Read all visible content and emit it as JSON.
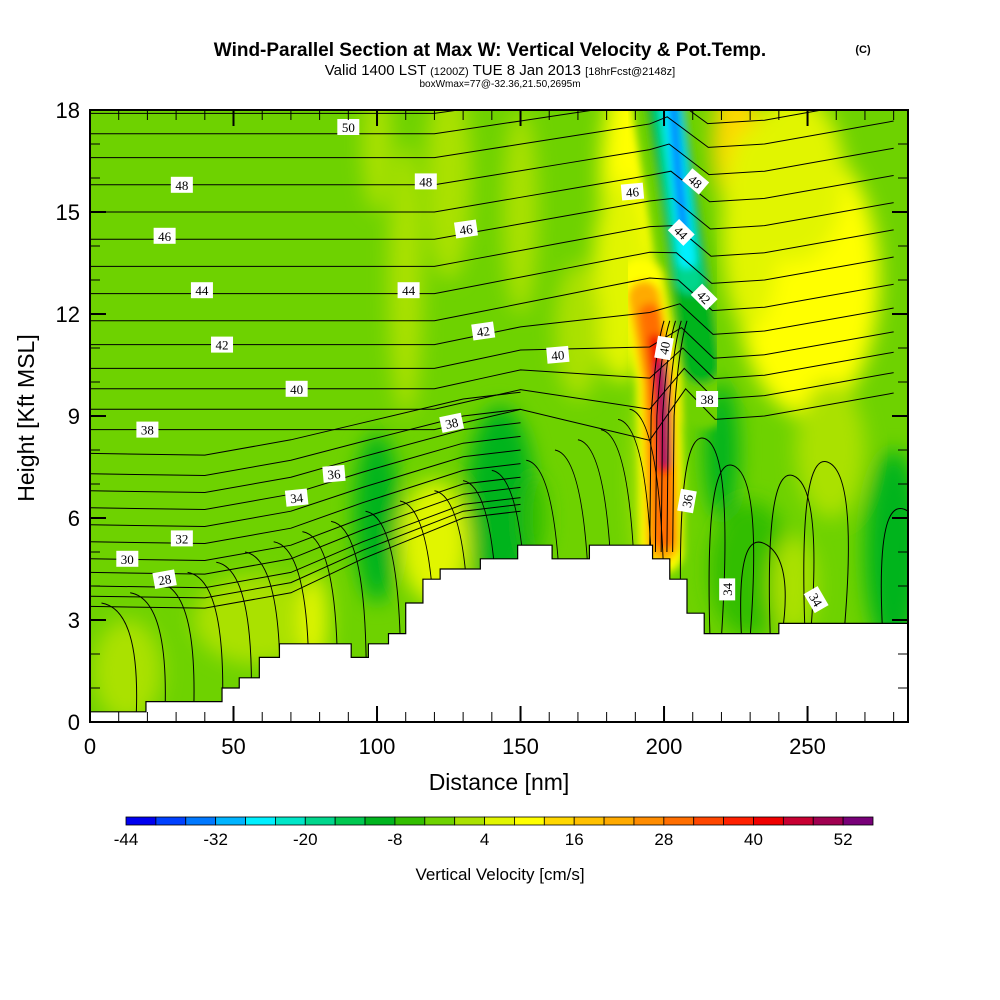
{
  "header": {
    "title": "Wind-Parallel Section at Max W: Vertical Velocity & Pot.Temp.",
    "copyright": "(C)",
    "valid_prefix": "Valid 1400 LST",
    "valid_utc": "(1200Z)",
    "valid_date": "TUE 8 Jan 2013",
    "forecast": "[18hrFcst@2148z]",
    "boxwmax": "boxWmax=77@-32.36,21.50,2695m"
  },
  "chart_data": {
    "type": "heatmap",
    "title": "Wind-Parallel Section at Max W: Vertical Velocity & Pot.Temp.",
    "xlabel": "Distance [nm]",
    "ylabel": "Height [Kft MSL]",
    "xlim": [
      0,
      285
    ],
    "ylim": [
      0,
      18
    ],
    "xticks": [
      0,
      50,
      100,
      150,
      200,
      250
    ],
    "yticks": [
      0,
      3,
      6,
      9,
      12,
      15,
      18
    ],
    "colorbar": {
      "label": "Vertical Velocity [cm/s]",
      "placement": "bottom",
      "levels": [
        -44,
        -40,
        -36,
        -32,
        -28,
        -24,
        -20,
        -16,
        -12,
        -8,
        -4,
        0,
        4,
        8,
        12,
        16,
        20,
        24,
        28,
        32,
        36,
        40,
        44,
        48,
        52,
        56
      ],
      "tick_labels": [
        "-44",
        "-32",
        "-20",
        "-8",
        "4",
        "16",
        "28",
        "40",
        "52"
      ],
      "tick_values": [
        -44,
        -32,
        -20,
        -8,
        4,
        16,
        28,
        40,
        52
      ],
      "colors": [
        "#0000f0",
        "#0040ff",
        "#0078ff",
        "#00b4ff",
        "#00f0ff",
        "#00e6c8",
        "#00d68c",
        "#00c850",
        "#00b41e",
        "#32be00",
        "#6ed200",
        "#aae100",
        "#e1f500",
        "#ffff00",
        "#ffd700",
        "#ffc000",
        "#ffaa00",
        "#ff8c00",
        "#ff6e00",
        "#ff4600",
        "#ff2000",
        "#f00000",
        "#c80032",
        "#a00050",
        "#780078"
      ]
    },
    "features": [
      {
        "name": "updraft core",
        "x_nm": 200,
        "height_kft": [
          6,
          12
        ],
        "max_w_cm_s": 56
      },
      {
        "name": "downdraft core",
        "x_nm": 205,
        "height_kft": [
          12,
          18
        ],
        "min_w_cm_s": -40
      }
    ],
    "theta_contours": {
      "variable": "Potential Temperature",
      "labels": [
        {
          "value": "50",
          "x_nm": 90,
          "height_kft": 17.5
        },
        {
          "value": "48",
          "x_nm": 32,
          "height_kft": 15.8
        },
        {
          "value": "48",
          "x_nm": 117,
          "height_kft": 15.9
        },
        {
          "value": "48",
          "x_nm": 211,
          "height_kft": 15.9
        },
        {
          "value": "46",
          "x_nm": 26,
          "height_kft": 14.3
        },
        {
          "value": "46",
          "x_nm": 131,
          "height_kft": 14.5
        },
        {
          "value": "46",
          "x_nm": 189,
          "height_kft": 15.6
        },
        {
          "value": "44",
          "x_nm": 39,
          "height_kft": 12.7
        },
        {
          "value": "44",
          "x_nm": 111,
          "height_kft": 12.7
        },
        {
          "value": "44",
          "x_nm": 206,
          "height_kft": 14.4
        },
        {
          "value": "42",
          "x_nm": 46,
          "height_kft": 11.1
        },
        {
          "value": "42",
          "x_nm": 137,
          "height_kft": 11.5
        },
        {
          "value": "42",
          "x_nm": 214,
          "height_kft": 12.5
        },
        {
          "value": "40",
          "x_nm": 72,
          "height_kft": 9.8
        },
        {
          "value": "40",
          "x_nm": 163,
          "height_kft": 10.8
        },
        {
          "value": "40",
          "x_nm": 200,
          "height_kft": 11.0
        },
        {
          "value": "38",
          "x_nm": 20,
          "height_kft": 8.6
        },
        {
          "value": "38",
          "x_nm": 126,
          "height_kft": 8.8
        },
        {
          "value": "38",
          "x_nm": 215,
          "height_kft": 9.5
        },
        {
          "value": "36",
          "x_nm": 85,
          "height_kft": 7.3
        },
        {
          "value": "36",
          "x_nm": 208,
          "height_kft": 6.5
        },
        {
          "value": "34",
          "x_nm": 72,
          "height_kft": 6.6
        },
        {
          "value": "34",
          "x_nm": 222,
          "height_kft": 3.9
        },
        {
          "value": "34",
          "x_nm": 253,
          "height_kft": 3.6
        },
        {
          "value": "32",
          "x_nm": 32,
          "height_kft": 5.4
        },
        {
          "value": "30",
          "x_nm": 13,
          "height_kft": 4.8
        },
        {
          "value": "28",
          "x_nm": 26,
          "height_kft": 4.2
        }
      ]
    },
    "terrain_profile_kft": [
      [
        0,
        0.3
      ],
      [
        19.5,
        0.3
      ],
      [
        19.5,
        0.6
      ],
      [
        46,
        0.6
      ],
      [
        46,
        1.0
      ],
      [
        52,
        1.0
      ],
      [
        52,
        1.3
      ],
      [
        59,
        1.3
      ],
      [
        59,
        1.9
      ],
      [
        66,
        1.9
      ],
      [
        66,
        2.3
      ],
      [
        91,
        2.3
      ],
      [
        91,
        1.9
      ],
      [
        97,
        1.9
      ],
      [
        97,
        2.3
      ],
      [
        104,
        2.3
      ],
      [
        104,
        2.6
      ],
      [
        110,
        2.6
      ],
      [
        110,
        3.5
      ],
      [
        116,
        3.5
      ],
      [
        116,
        4.2
      ],
      [
        122,
        4.2
      ],
      [
        122,
        4.5
      ],
      [
        136,
        4.5
      ],
      [
        136,
        4.8
      ],
      [
        149,
        4.8
      ],
      [
        149,
        5.2
      ],
      [
        161,
        5.2
      ],
      [
        161,
        4.8
      ],
      [
        174,
        4.8
      ],
      [
        174,
        5.2
      ],
      [
        196,
        5.2
      ],
      [
        196,
        4.8
      ],
      [
        202,
        4.8
      ],
      [
        202,
        4.2
      ],
      [
        208,
        4.2
      ],
      [
        208,
        3.2
      ],
      [
        214,
        3.2
      ],
      [
        214,
        2.6
      ],
      [
        240,
        2.6
      ],
      [
        240,
        2.9
      ],
      [
        285,
        2.9
      ]
    ]
  }
}
